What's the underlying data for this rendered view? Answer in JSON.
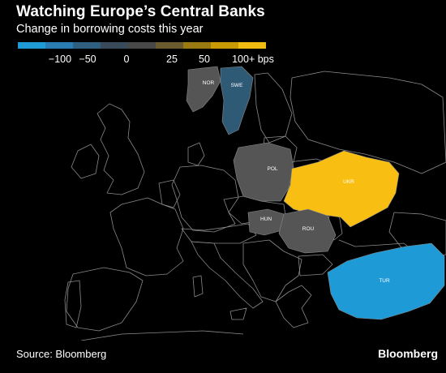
{
  "title": "Watching Europe’s Central Banks",
  "subtitle": "Change in borrowing costs this year",
  "legend": {
    "colors": [
      "#1E9AD6",
      "#2A7DB0",
      "#2E5E80",
      "#3A4A58",
      "#484848",
      "#6A5A30",
      "#9A7A10",
      "#C89B05",
      "#F2BB12"
    ],
    "labels": [
      "−100",
      "−50",
      "0",
      "25",
      "50",
      "100+ bps"
    ]
  },
  "countries": {
    "NOR": {
      "label": "NOR",
      "color": "#555555"
    },
    "SWE": {
      "label": "SWE",
      "color": "#2F5A75"
    },
    "POL": {
      "label": "POL",
      "color": "#555555"
    },
    "UKR": {
      "label": "UKR",
      "color": "#F8BE12"
    },
    "HUN": {
      "label": "HUN",
      "color": "#555555"
    },
    "ROU": {
      "label": "ROU",
      "color": "#555555"
    },
    "TUR": {
      "label": "TUR",
      "color": "#1E9AD6"
    }
  },
  "source": "Source: Bloomberg",
  "brand": "Bloomberg"
}
